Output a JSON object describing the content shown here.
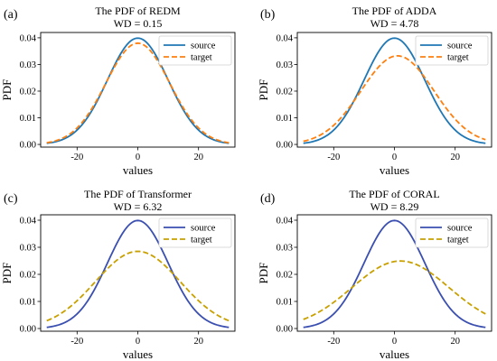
{
  "chart_data": [
    {
      "type": "line",
      "panel_label": "(a)",
      "title": "The PDF of REDM",
      "subtitle": "WD = 0.15",
      "xlabel": "values",
      "ylabel": "PDF",
      "xlim": [
        -32,
        32
      ],
      "ylim": [
        -0.001,
        0.042
      ],
      "xticks": [
        -20,
        0,
        20
      ],
      "yticks": [
        0.0,
        0.01,
        0.02,
        0.03,
        0.04
      ],
      "ytick_labels": [
        "0.00",
        "0.01",
        "0.02",
        "0.03",
        "0.04"
      ],
      "legend_position": "top-right",
      "series": [
        {
          "name": "source",
          "mean": 0,
          "std": 10.0,
          "x_range": [
            -30,
            30
          ],
          "style": "solid",
          "color": "#1f77b4"
        },
        {
          "name": "target",
          "mean": 0,
          "std": 10.5,
          "x_range": [
            -30,
            30
          ],
          "style": "dashed",
          "color": "#ff7f0e"
        }
      ]
    },
    {
      "type": "line",
      "panel_label": "(b)",
      "title": "The PDF of ADDA",
      "subtitle": "WD = 4.78",
      "xlabel": "values",
      "ylabel": "PDF",
      "xlim": [
        -32,
        32
      ],
      "ylim": [
        -0.001,
        0.042
      ],
      "xticks": [
        -20,
        0,
        20
      ],
      "yticks": [
        0.0,
        0.01,
        0.02,
        0.03,
        0.04
      ],
      "ytick_labels": [
        "0.00",
        "0.01",
        "0.02",
        "0.03",
        "0.04"
      ],
      "legend_position": "top-right",
      "series": [
        {
          "name": "source",
          "mean": 0,
          "std": 10.0,
          "x_range": [
            -30,
            30
          ],
          "style": "solid",
          "color": "#1f77b4"
        },
        {
          "name": "target",
          "mean": 1,
          "std": 12.0,
          "x_range": [
            -30,
            30
          ],
          "style": "dashed",
          "color": "#ff7f0e"
        }
      ]
    },
    {
      "type": "line",
      "panel_label": "(c)",
      "title": "The PDF of Transformer",
      "subtitle": "WD = 6.32",
      "xlabel": "values",
      "ylabel": "PDF",
      "xlim": [
        -32,
        32
      ],
      "ylim": [
        -0.001,
        0.042
      ],
      "xticks": [
        -20,
        0,
        20
      ],
      "yticks": [
        0.0,
        0.01,
        0.02,
        0.03,
        0.04
      ],
      "ytick_labels": [
        "0.00",
        "0.01",
        "0.02",
        "0.03",
        "0.04"
      ],
      "legend_position": "top-right",
      "series": [
        {
          "name": "source",
          "mean": 0,
          "std": 10.0,
          "x_range": [
            -30,
            30
          ],
          "style": "solid",
          "color": "#3a4fb0"
        },
        {
          "name": "target",
          "mean": 0,
          "std": 14.0,
          "x_range": [
            -30,
            30
          ],
          "style": "dashed",
          "color": "#c8a000"
        }
      ]
    },
    {
      "type": "line",
      "panel_label": "(d)",
      "title": "The PDF of CORAL",
      "subtitle": "WD = 8.29",
      "xlabel": "values",
      "ylabel": "PDF",
      "xlim": [
        -32,
        32
      ],
      "ylim": [
        -0.001,
        0.042
      ],
      "xticks": [
        -20,
        0,
        20
      ],
      "yticks": [
        0.0,
        0.01,
        0.02,
        0.03,
        0.04
      ],
      "ytick_labels": [
        "0.00",
        "0.01",
        "0.02",
        "0.03",
        "0.04"
      ],
      "legend_position": "top-right",
      "series": [
        {
          "name": "source",
          "mean": 0,
          "std": 10.0,
          "x_range": [
            -30,
            30
          ],
          "style": "solid",
          "color": "#3a4fb0"
        },
        {
          "name": "target",
          "mean": 2,
          "std": 16.0,
          "x_range": [
            -30,
            30
          ],
          "style": "dashed",
          "color": "#c8a000"
        }
      ]
    }
  ]
}
